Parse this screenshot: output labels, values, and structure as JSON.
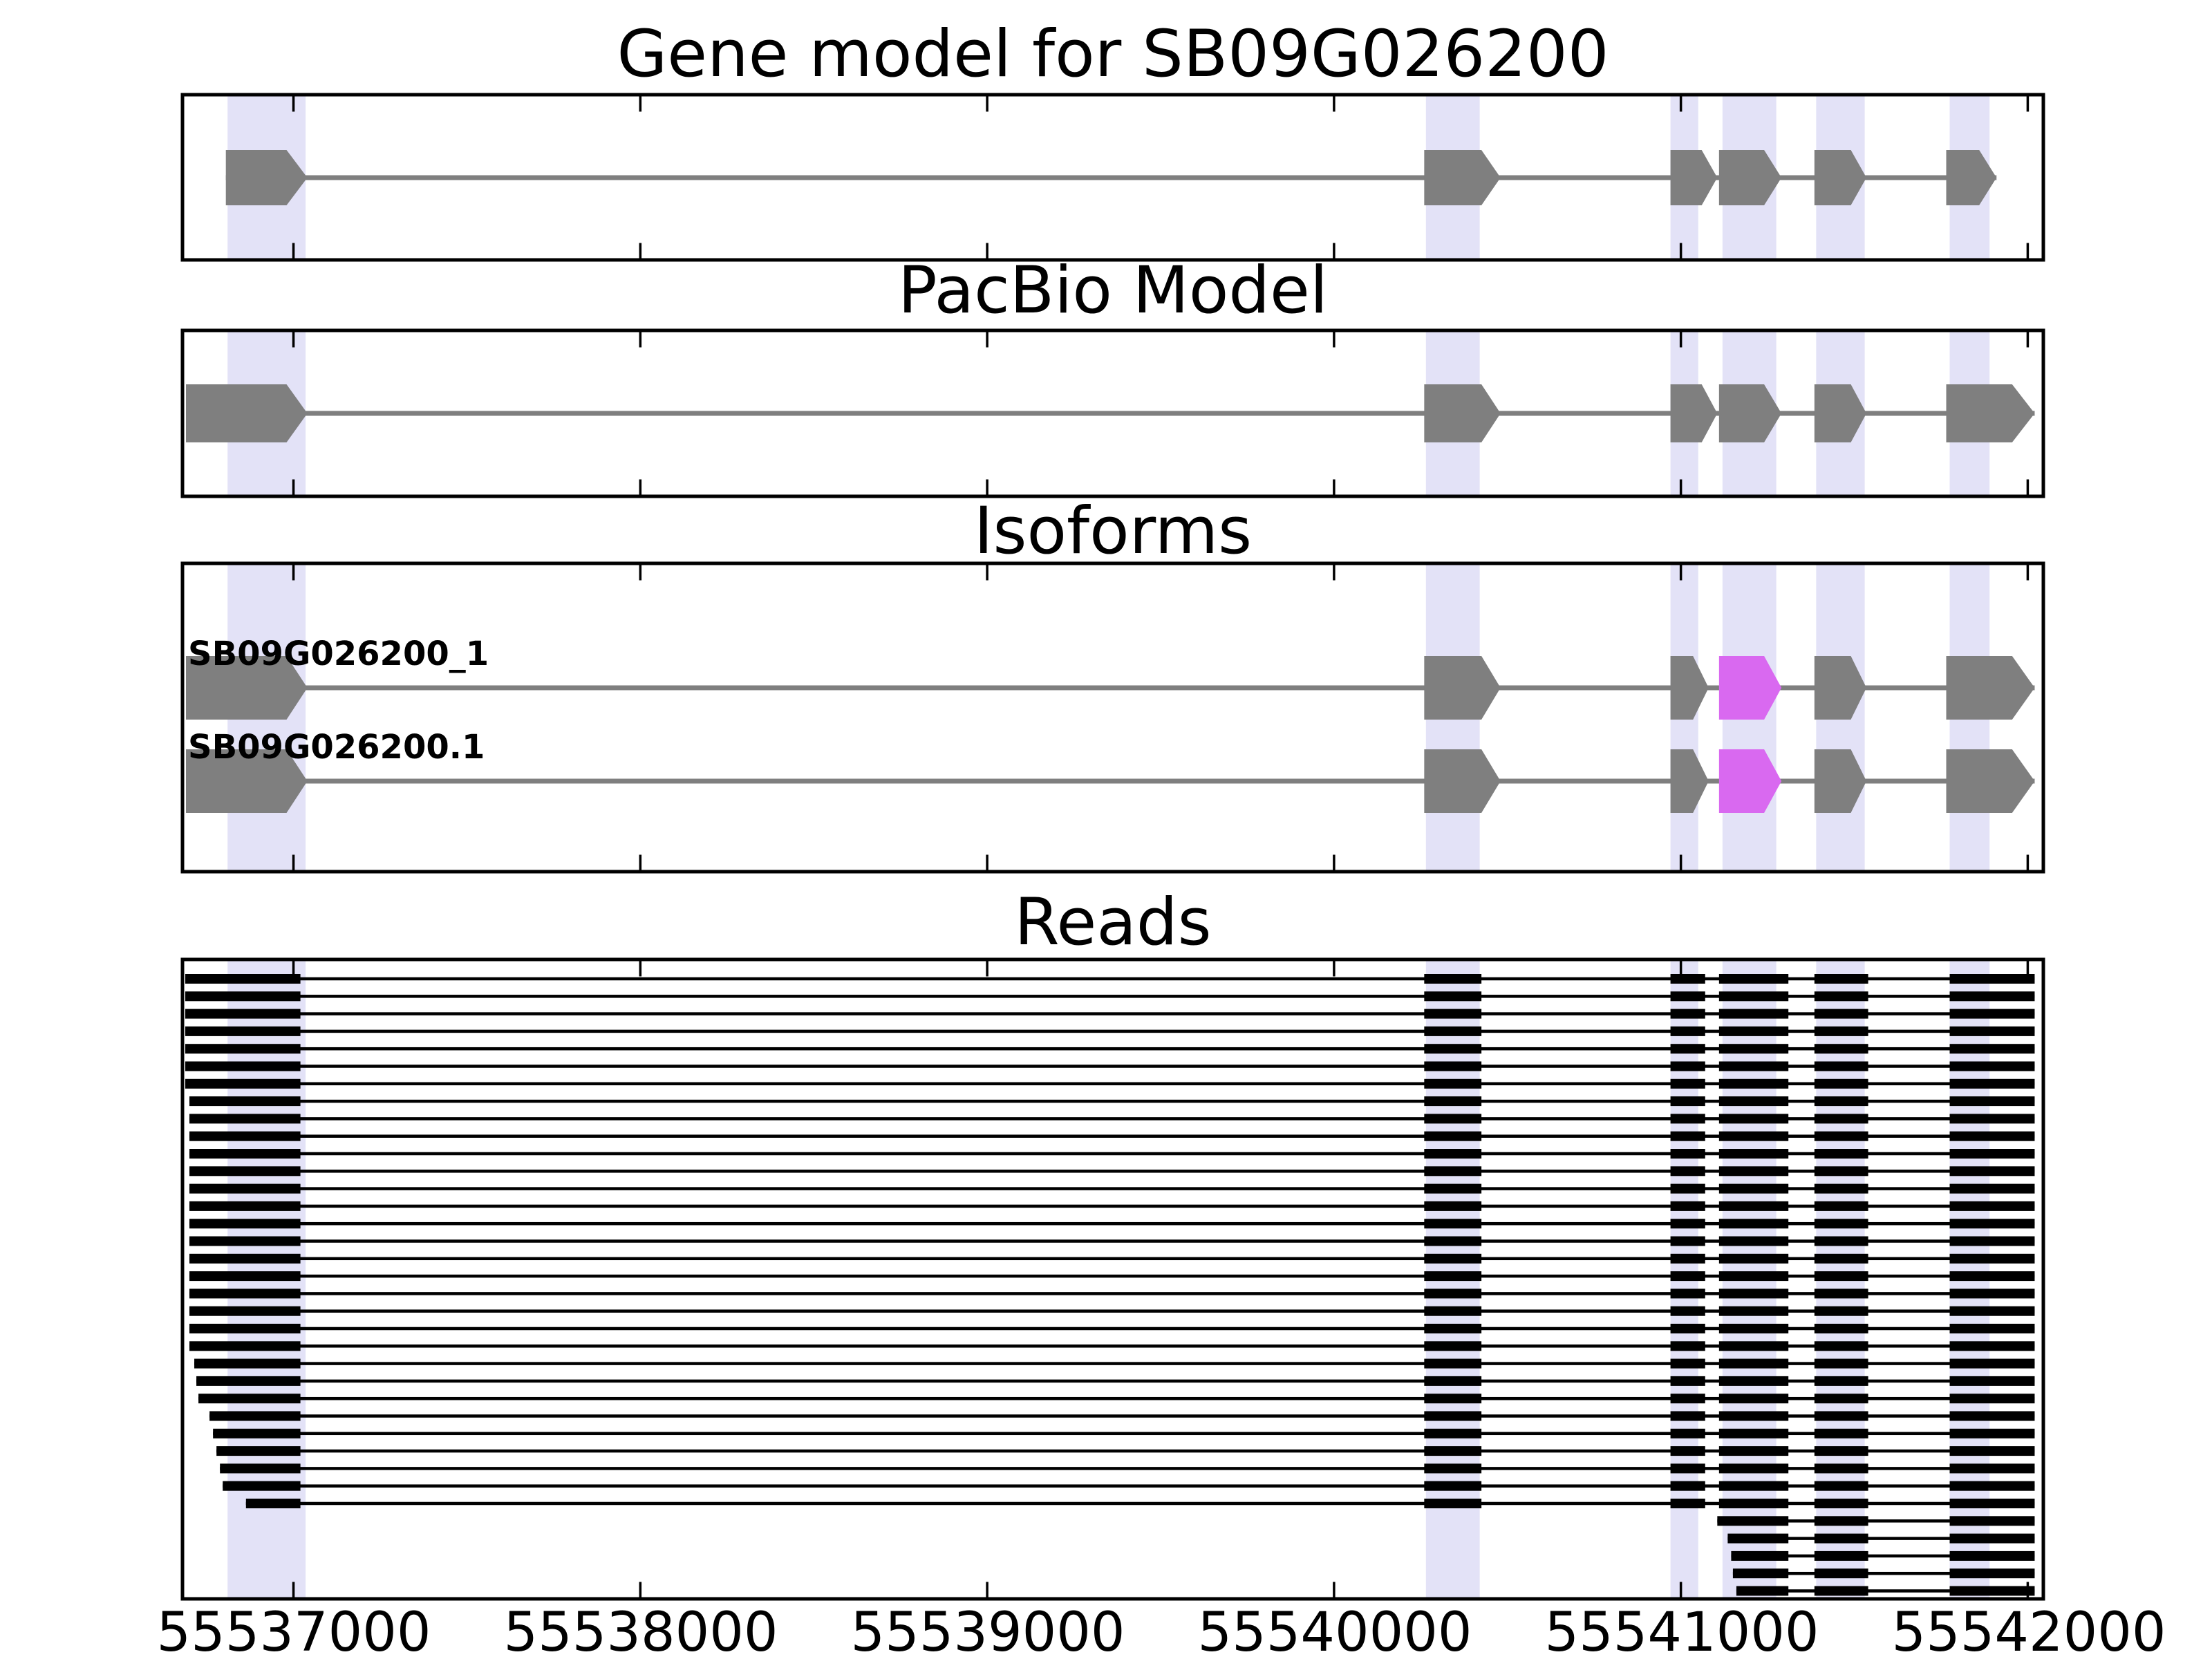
{
  "chart_data": {
    "type": "genome-tracks",
    "title": "Gene model for SB09G026200",
    "gene_id": "SB09G026200",
    "x_axis": {
      "xmin": 55536680,
      "xmax": 55542045,
      "tick_values": [
        55537000,
        55538000,
        55539000,
        55540000,
        55541000,
        55542000
      ],
      "tick_labels": [
        "55537000",
        "55538000",
        "55539000",
        "55540000",
        "55541000",
        "55542000"
      ]
    },
    "colors": {
      "exon": "#7f7f7f",
      "intron_line": "#7f7f7f",
      "highlight_exon": "#d969f0",
      "highlight_band": "#e3e2f7",
      "read": "#000000",
      "frame": "#000000",
      "text": "#000000",
      "background": "#ffffff"
    },
    "highlight_bands": [
      [
        55536810,
        55537035
      ],
      [
        55540265,
        55540420
      ],
      [
        55540970,
        55541050
      ],
      [
        55541120,
        55541275
      ],
      [
        55541390,
        55541530
      ],
      [
        55541775,
        55541890
      ]
    ],
    "panels": [
      {
        "id": "gene_model",
        "title": "Gene model for SB09G026200",
        "exons": [
          {
            "s": 55536805,
            "e": 55536980,
            "tip": 55537040
          },
          {
            "s": 55540260,
            "e": 55540425,
            "tip": 55540480
          },
          {
            "s": 55540970,
            "e": 55541060,
            "tip": 55541105
          },
          {
            "s": 55541110,
            "e": 55541240,
            "tip": 55541290
          },
          {
            "s": 55541385,
            "e": 55541490,
            "tip": 55541535
          },
          {
            "s": 55541765,
            "e": 55541860,
            "tip": 55541910
          }
        ]
      },
      {
        "id": "pacbio_model",
        "title": "PacBio Model",
        "exons": [
          {
            "s": 55536690,
            "e": 55536980,
            "tip": 55537040
          },
          {
            "s": 55540260,
            "e": 55540425,
            "tip": 55540480
          },
          {
            "s": 55540970,
            "e": 55541060,
            "tip": 55541105
          },
          {
            "s": 55541110,
            "e": 55541240,
            "tip": 55541290
          },
          {
            "s": 55541385,
            "e": 55541490,
            "tip": 55541535
          },
          {
            "s": 55541765,
            "e": 55541955,
            "tip": 55542020
          }
        ]
      },
      {
        "id": "isoforms",
        "title": "Isoforms",
        "tracks": [
          {
            "label": "SB09G026200_1",
            "exons": [
              {
                "s": 55536690,
                "e": 55536980,
                "tip": 55537040
              },
              {
                "s": 55540260,
                "e": 55540425,
                "tip": 55540480
              },
              {
                "s": 55540970,
                "e": 55541035,
                "tip": 55541080
              },
              {
                "s": 55541110,
                "e": 55541240,
                "tip": 55541290,
                "hl": true
              },
              {
                "s": 55541385,
                "e": 55541490,
                "tip": 55541535
              },
              {
                "s": 55541765,
                "e": 55541955,
                "tip": 55542020
              }
            ]
          },
          {
            "label": "SB09G026200.1",
            "exons": [
              {
                "s": 55536690,
                "e": 55536980,
                "tip": 55537040
              },
              {
                "s": 55540260,
                "e": 55540425,
                "tip": 55540480
              },
              {
                "s": 55540970,
                "e": 55541035,
                "tip": 55541080
              },
              {
                "s": 55541110,
                "e": 55541240,
                "tip": 55541290,
                "hl": true
              },
              {
                "s": 55541385,
                "e": 55541490,
                "tip": 55541535
              },
              {
                "s": 55541765,
                "e": 55541955,
                "tip": 55542020
              }
            ]
          }
        ]
      },
      {
        "id": "reads",
        "title": "Reads",
        "read_end": 55542020,
        "long_reads": {
          "first_block_end": 55537020,
          "blocks": [
            [
              55540260,
              55540425
            ],
            [
              55540970,
              55541070
            ],
            [
              55541110,
              55541310
            ],
            [
              55541385,
              55541540
            ],
            [
              55541775,
              55542020
            ]
          ],
          "starts": [
            55536688,
            55536688,
            55536688,
            55536688,
            55536688,
            55536688,
            55536688,
            55536700,
            55536700,
            55536700,
            55536700,
            55536700,
            55536700,
            55536700,
            55536700,
            55536700,
            55536700,
            55536700,
            55536700,
            55536700,
            55536700,
            55536700,
            55536714,
            55536720,
            55536726,
            55536758,
            55536768,
            55536778,
            55536788,
            55536796,
            55536863
          ]
        },
        "short_reads": {
          "first_block_end": 55541310,
          "blocks": [
            [
              55541385,
              55541540
            ],
            [
              55541775,
              55542020
            ]
          ],
          "starts": [
            55541105,
            55541135,
            55541145,
            55541150,
            55541160
          ]
        }
      }
    ]
  }
}
